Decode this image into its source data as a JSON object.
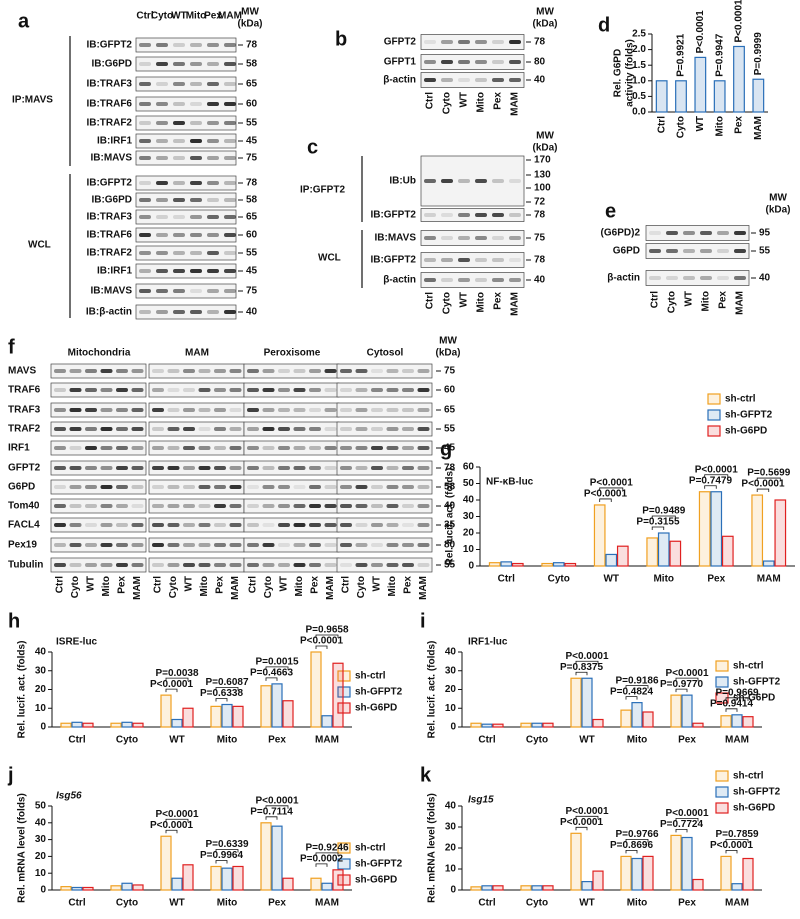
{
  "blots": {
    "a": {
      "letter": "a",
      "mw_header": [
        "MW",
        "(kDa)"
      ],
      "lanes": [
        "Ctrl",
        "Cyto",
        "WT",
        "Mito",
        "Pex",
        "MAM"
      ],
      "groups": [
        {
          "label": "IP:MAVS",
          "rows": [
            {
              "label": "IB:GFPT2",
              "mw": [
                78
              ]
            },
            {
              "label": "IB:G6PD",
              "mw": [
                58
              ]
            },
            {
              "label": "IB:TRAF3",
              "mw": [
                65
              ]
            },
            {
              "label": "IB:TRAF6",
              "mw": [
                60
              ]
            },
            {
              "label": "IB:TRAF2",
              "mw": [
                55
              ]
            },
            {
              "label": "IB:IRF1",
              "mw": [
                45
              ]
            },
            {
              "label": "IB:MAVS",
              "mw": [
                75
              ]
            }
          ]
        },
        {
          "label": "WCL",
          "rows": [
            {
              "label": "IB:GFPT2",
              "mw": [
                78
              ]
            },
            {
              "label": "IB:G6PD",
              "mw": [
                58
              ]
            },
            {
              "label": "IB:TRAF3",
              "mw": [
                65
              ]
            },
            {
              "label": "IB:TRAF6",
              "mw": [
                60
              ]
            },
            {
              "label": "IB:TRAF2",
              "mw": [
                55
              ]
            },
            {
              "label": "IB:IRF1",
              "mw": [
                45
              ]
            },
            {
              "label": "IB:MAVS",
              "mw": [
                75
              ]
            },
            {
              "label": "IB:β-actin",
              "mw": [
                40
              ]
            }
          ]
        }
      ]
    },
    "b": {
      "letter": "b",
      "mw_header": [
        "MW",
        "(kDa)"
      ],
      "lanes": [
        "Ctrl",
        "Cyto",
        "WT",
        "Mito",
        "Pex",
        "MAM"
      ],
      "rows": [
        {
          "label": "GFPT2",
          "mw": [
            78
          ]
        },
        {
          "label": "GFPT1",
          "mw": [
            80
          ]
        },
        {
          "label": "β-actin",
          "mw": [
            40
          ]
        }
      ]
    },
    "c": {
      "letter": "c",
      "mw_header": [
        "MW",
        "(kDa)"
      ],
      "lanes": [
        "Ctrl",
        "Cyto",
        "WT",
        "Mito",
        "Pex",
        "MAM"
      ],
      "groups": [
        {
          "label": "IP:GFPT2",
          "rows": [
            {
              "label": "IB:Ub",
              "mw": [
                170,
                130,
                100,
                72
              ]
            },
            {
              "label": "IB:GFPT2",
              "mw": [
                78
              ]
            }
          ]
        },
        {
          "label": "WCL",
          "rows": [
            {
              "label": "IB:MAVS",
              "mw": [
                75
              ]
            },
            {
              "label": "IB:GFPT2",
              "mw": [
                78
              ]
            },
            {
              "label": "β-actin",
              "mw": [
                40
              ]
            }
          ]
        }
      ]
    },
    "e": {
      "letter": "e",
      "mw_header": [
        "MW",
        "(kDa)"
      ],
      "lanes": [
        "Ctrl",
        "Cyto",
        "WT",
        "Mito",
        "Pex",
        "MAM"
      ],
      "rows": [
        {
          "label": "(G6PD)2",
          "mw": [
            95
          ]
        },
        {
          "label": "G6PD",
          "mw": [
            55
          ]
        },
        {
          "label": "β-actin",
          "mw": [
            40
          ]
        }
      ]
    },
    "f": {
      "letter": "f",
      "mw_header": [
        "MW",
        "(kDa)"
      ],
      "lane_groups": [
        "Mitochondria",
        "MAM",
        "Peroxisome",
        "Cytosol"
      ],
      "lanes": [
        "Ctrl",
        "Cyto",
        "WT",
        "Mito",
        "Pex",
        "MAM"
      ],
      "rows": [
        {
          "label": "MAVS",
          "mw": [
            75
          ]
        },
        {
          "label": "TRAF6",
          "mw": [
            60
          ]
        },
        {
          "label": "TRAF3",
          "mw": [
            65
          ]
        },
        {
          "label": "TRAF2",
          "mw": [
            55
          ]
        },
        {
          "label": "IRF1",
          "mw": [
            45
          ]
        },
        {
          "label": "GFPT2",
          "mw": [
            78
          ]
        },
        {
          "label": "G6PD",
          "mw": [
            58
          ]
        },
        {
          "label": "Tom40",
          "mw": [
            40
          ]
        },
        {
          "label": "FACL4",
          "mw": [
            35
          ]
        },
        {
          "label": "Pex19",
          "mw": [
            80
          ]
        },
        {
          "label": "Tubulin",
          "mw": [
            55
          ]
        }
      ]
    }
  },
  "chart_data": [
    {
      "type": "bar",
      "letter": "d",
      "ylabel": [
        "Rel. G6PD",
        "activity (folds)"
      ],
      "categories": [
        "Ctrl",
        "Cyto",
        "WT",
        "Mito",
        "Pex",
        "MAM"
      ],
      "values": [
        1.0,
        1.0,
        1.75,
        1.0,
        2.1,
        1.05
      ],
      "color": "#2a6fb8",
      "p_values": [
        null,
        "P=0.9921",
        "P<0.0001",
        "P=0.9947",
        "P<0.0001",
        "P=0.9999"
      ],
      "ylim": [
        0,
        2.5
      ],
      "yticks": [
        {
          "value": 0,
          "label": "0.0"
        },
        0.5,
        {
          "value": 1,
          "label": "1.0"
        },
        1.5,
        {
          "value": 2,
          "label": "2.0"
        },
        2.5
      ]
    },
    {
      "type": "bar",
      "letter": "g",
      "title": "NF-κB-luc",
      "ylabel": "Rel. lucif. act. (folds)",
      "categories": [
        "Ctrl",
        "Cyto",
        "WT",
        "Mito",
        "Pex",
        "MAM"
      ],
      "series": [
        {
          "name": "sh-ctrl",
          "color": "#f0a020",
          "values": [
            2,
            1.5,
            37,
            17,
            45,
            43
          ]
        },
        {
          "name": "sh-GFPT2",
          "color": "#2a6fb8",
          "values": [
            2.5,
            2,
            7,
            20,
            45,
            3
          ]
        },
        {
          "name": "sh-G6PD",
          "color": "#e02020",
          "values": [
            1.5,
            1.5,
            12,
            15,
            18,
            40
          ]
        }
      ],
      "p_values": [
        null,
        null,
        [
          "P<0.0001",
          "P<0.0001"
        ],
        [
          "P=0.3155",
          "P=0.9489"
        ],
        [
          "P=0.7479",
          "P<0.0001"
        ],
        [
          "P<0.0001",
          "P=0.5699"
        ]
      ],
      "ylim": [
        0,
        60
      ],
      "yticks": [
        0,
        10,
        20,
        30,
        40,
        50,
        60
      ]
    },
    {
      "type": "bar",
      "letter": "h",
      "title": "ISRE-luc",
      "ylabel": "Rel. lucif. act. (folds)",
      "categories": [
        "Ctrl",
        "Cyto",
        "WT",
        "Mito",
        "Pex",
        "MAM"
      ],
      "series": [
        {
          "name": "sh-ctrl",
          "color": "#f0a020",
          "values": [
            2,
            2,
            17,
            11,
            22,
            40
          ]
        },
        {
          "name": "sh-GFPT2",
          "color": "#2a6fb8",
          "values": [
            2.5,
            2.5,
            4,
            12,
            23,
            6
          ]
        },
        {
          "name": "sh-G6PD",
          "color": "#e02020",
          "values": [
            2,
            2,
            10,
            11,
            14,
            34
          ]
        }
      ],
      "p_values": [
        null,
        null,
        [
          "P<0.0001",
          "P=0.0038"
        ],
        [
          "P=0.6338",
          "P=0.6087"
        ],
        [
          "P=0.4663",
          "P=0.0015"
        ],
        [
          "P<0.0001",
          "P=0.9658"
        ]
      ],
      "ylim": [
        0,
        40
      ],
      "yticks": [
        0,
        10,
        20,
        30,
        40
      ]
    },
    {
      "type": "bar",
      "letter": "i",
      "title": "IRF1-luc",
      "ylabel": "Rel. lucif. act. (folds)",
      "categories": [
        "Ctrl",
        "Cyto",
        "WT",
        "Mito",
        "Pex",
        "MAM"
      ],
      "series": [
        {
          "name": "sh-ctrl",
          "color": "#f0a020",
          "values": [
            2,
            2,
            26,
            9,
            17,
            6
          ]
        },
        {
          "name": "sh-GFPT2",
          "color": "#2a6fb8",
          "values": [
            1.5,
            2,
            26,
            13,
            17,
            6.5
          ]
        },
        {
          "name": "sh-G6PD",
          "color": "#e02020",
          "values": [
            1.5,
            2,
            4,
            8,
            2,
            5.5
          ]
        }
      ],
      "p_values": [
        null,
        null,
        [
          "P=0.8375",
          "P<0.0001"
        ],
        [
          "P=0.4824",
          "P=0.9186"
        ],
        [
          "P=0.9770",
          "P<0.0001"
        ],
        [
          "P=0.9414",
          "P=0.9669"
        ]
      ],
      "ylim": [
        0,
        40
      ],
      "yticks": [
        0,
        10,
        20,
        30,
        40
      ]
    },
    {
      "type": "bar",
      "letter": "j",
      "title": "Isg56",
      "ylabel": "Rel. mRNA level (folds)",
      "categories": [
        "Ctrl",
        "Cyto",
        "WT",
        "Mito",
        "Pex",
        "MAM"
      ],
      "series": [
        {
          "name": "sh-ctrl",
          "color": "#f0a020",
          "values": [
            2,
            2.5,
            32,
            14,
            40,
            7
          ]
        },
        {
          "name": "sh-GFPT2",
          "color": "#2a6fb8",
          "values": [
            1.5,
            4,
            7,
            13,
            38,
            4
          ]
        },
        {
          "name": "sh-G6PD",
          "color": "#e02020",
          "values": [
            1.5,
            3,
            15,
            14,
            7,
            12
          ]
        }
      ],
      "p_values": [
        null,
        null,
        [
          "P<0.0001",
          "P<0.0001"
        ],
        [
          "P=0.9964",
          "P=0.6339"
        ],
        [
          "P=0.7114",
          "P<0.0001"
        ],
        [
          "P=0.0002",
          "P=0.9246"
        ]
      ],
      "ylim": [
        0,
        50
      ],
      "yticks": [
        0,
        10,
        20,
        30,
        40,
        50
      ]
    },
    {
      "type": "bar",
      "letter": "k",
      "title": "Isg15",
      "ylabel": "Rel. mRNA level (folds)",
      "categories": [
        "Ctrl",
        "Cyto",
        "WT",
        "Mito",
        "Pex",
        "MAM"
      ],
      "series": [
        {
          "name": "sh-ctrl",
          "color": "#f0a020",
          "values": [
            1.5,
            2,
            27,
            16,
            26,
            16
          ]
        },
        {
          "name": "sh-GFPT2",
          "color": "#2a6fb8",
          "values": [
            2,
            2,
            4,
            15,
            25,
            3
          ]
        },
        {
          "name": "sh-G6PD",
          "color": "#e02020",
          "values": [
            2,
            2,
            9,
            16,
            5,
            15
          ]
        }
      ],
      "p_values": [
        null,
        null,
        [
          "P<0.0001",
          "P<0.0001"
        ],
        [
          "P=0.8696",
          "P=0.9766"
        ],
        [
          "P=0.7724",
          "P<0.0001"
        ],
        [
          "P<0.0001",
          "P=0.7859"
        ]
      ],
      "ylim": [
        0,
        40
      ],
      "yticks": [
        0,
        10,
        20,
        30,
        40
      ]
    }
  ]
}
